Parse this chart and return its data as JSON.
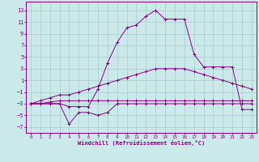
{
  "xlabel": "Windchill (Refroidissement éolien,°C)",
  "bg_color": "#cce9e9",
  "grid_color": "#aacccc",
  "line_color": "#880088",
  "x_ticks": [
    0,
    1,
    2,
    3,
    4,
    5,
    6,
    7,
    8,
    9,
    10,
    11,
    12,
    13,
    14,
    15,
    16,
    17,
    18,
    19,
    20,
    21,
    22,
    23
  ],
  "y_ticks": [
    -7,
    -5,
    -3,
    -1,
    1,
    3,
    5,
    7,
    9,
    11,
    13
  ],
  "xlim": [
    -0.5,
    23.5
  ],
  "ylim": [
    -8.0,
    14.5
  ],
  "line1_x": [
    0,
    1,
    2,
    3,
    4,
    5,
    6,
    7,
    8,
    9,
    10,
    11,
    12,
    13,
    14,
    15,
    16,
    17,
    18,
    19,
    20,
    21,
    22,
    23
  ],
  "line1_y": [
    -3,
    -3,
    -3,
    -3,
    -6.5,
    -4.5,
    -4.5,
    -5,
    -4.5,
    -3,
    -3,
    -3,
    -3,
    -3,
    -3,
    -3,
    -3,
    -3,
    -3,
    -3,
    -3,
    -3,
    -3,
    -3
  ],
  "line2_x": [
    0,
    1,
    2,
    3,
    4,
    5,
    6,
    7,
    8,
    9,
    10,
    11,
    12,
    13,
    14,
    15,
    16,
    17,
    18,
    19,
    20,
    21,
    22,
    23
  ],
  "line2_y": [
    -3,
    -2.5,
    -2,
    -1.5,
    -1.5,
    -1,
    -0.5,
    0,
    0.5,
    1.0,
    1.5,
    2,
    2.5,
    3,
    3,
    3,
    3,
    2.5,
    2.0,
    1.5,
    1.0,
    0.5,
    0.0,
    -0.5
  ],
  "line3_x": [
    0,
    1,
    2,
    3,
    4,
    5,
    6,
    7,
    8,
    9,
    10,
    11,
    12,
    13,
    14,
    15,
    16,
    17,
    18,
    19,
    20,
    21,
    22,
    23
  ],
  "line3_y": [
    -3,
    -3,
    -2.7,
    -2.5,
    -2.5,
    -2.5,
    -2.5,
    -2.5,
    -2.5,
    -2.5,
    -2.5,
    -2.5,
    -2.5,
    -2.5,
    -2.5,
    -2.5,
    -2.5,
    -2.5,
    -2.5,
    -2.5,
    -2.5,
    -2.5,
    -2.5,
    -2.5
  ],
  "line4_x": [
    0,
    2,
    3,
    4,
    5,
    6,
    7,
    8,
    9,
    10,
    11,
    12,
    13,
    14,
    15,
    16,
    17,
    18,
    19,
    20,
    21,
    22,
    23
  ],
  "line4_y": [
    -3,
    -3,
    -3,
    -3.5,
    -3.5,
    -3.5,
    -0.5,
    4,
    7.5,
    10,
    10.5,
    12,
    13,
    11.5,
    11.5,
    11.5,
    5.5,
    3.3,
    3.3,
    3.3,
    3.3,
    -4,
    -4
  ]
}
